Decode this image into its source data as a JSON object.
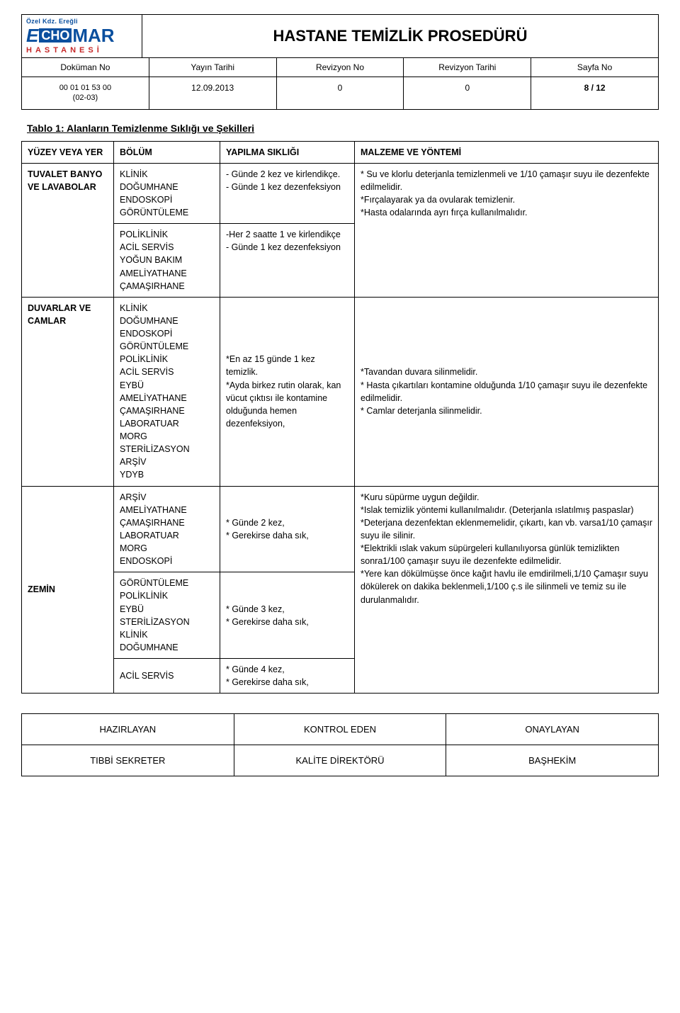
{
  "logo": {
    "top": "Özel Kdz. Ereğli",
    "e": "E",
    "cho": "CHO",
    "mar": "MAR",
    "sub": "HASTANESİ"
  },
  "title": "HASTANE TEMİZLİK PROSEDÜRÜ",
  "meta": {
    "headers": [
      "Doküman No",
      "Yayın Tarihi",
      "Revizyon No",
      "Revizyon Tarihi",
      "Sayfa No"
    ],
    "values": [
      "00 01 01 53 00\n(02-03)",
      "12.09.2013",
      "0",
      "0",
      "8 / 12"
    ]
  },
  "section_title": "Tablo 1: Alanların Temizlenme Sıklığı ve Şekilleri",
  "table": {
    "headers": {
      "yer": "YÜZEY VEYA YER",
      "bolum": "BÖLÜM",
      "siklik": "YAPILMA SIKLIĞI",
      "yontem": "MALZEME VE YÖNTEMİ"
    },
    "rows": [
      {
        "yer": "TUVALET BANYO VE LAVABOLAR",
        "yer_rowspan": 2,
        "bolum": "KLİNİK\nDOĞUMHANE\nENDOSKOPİ\nGÖRÜNTÜLEME",
        "siklik": "- Günde 2 kez ve kirlendikçe.\n- Günde 1 kez dezenfeksiyon",
        "yontem": "* Su ve klorlu deterjanla temizlenmeli ve 1/10 çamaşır suyu ile dezenfekte edilmelidir.\n*Fırçalayarak ya da ovularak temizlenir.\n*Hasta odalarında ayrı fırça kullanılmalıdır.",
        "yontem_rowspan": 2
      },
      {
        "bolum": "POLİKLİNİK\nACİL SERVİS\nYOĞUN BAKIM\nAMELİYATHANE\nÇAMAŞIRHANE",
        "siklik": "-Her 2 saatte 1 ve kirlendikçe\n- Günde 1 kez dezenfeksiyon"
      },
      {
        "yer": "DUVARLAR VE CAMLAR",
        "bolum": "KLİNİK\nDOĞUMHANE\nENDOSKOPİ\nGÖRÜNTÜLEME\nPOLİKLİNİK\nACİL SERVİS\nEYBÜ\nAMELİYATHANE\nÇAMAŞIRHANE\nLABORATUAR\nMORG\nSTERİLİZASYON\nARŞİV\nYDYB",
        "siklik": "*En az 15 günde 1 kez temizlik.\n*Ayda birkez rutin olarak, kan vücut çıktısı ile kontamine olduğunda hemen dezenfeksiyon,",
        "yontem": "*Tavandan duvara silinmelidir.\n* Hasta çıkartıları kontamine olduğunda 1/10 çamaşır suyu ile dezenfekte edilmelidir.\n* Camlar deterjanla silinmelidir."
      },
      {
        "yer": "ZEMİN",
        "yer_rowspan": 3,
        "bolum": "ARŞİV\nAMELİYATHANE\nÇAMAŞIRHANE\nLABORATUAR\nMORG\nENDOSKOPİ",
        "siklik": "* Günde 2 kez,\n* Gerekirse daha sık,",
        "yontem": "*Kuru süpürme uygun değildir.\n*Islak temizlik yöntemi kullanılmalıdır. (Deterjanla ıslatılmış paspaslar)\n*Deterjana dezenfektan eklenmemelidir, çıkartı, kan vb. varsa1/10 çamaşır suyu ile silinir.\n*Elektrikli ıslak vakum süpürgeleri kullanılıyorsa günlük temizlikten sonra1/100 çamaşır suyu ile dezenfekte edilmelidir.\n*Yere kan dökülmüşse önce kağıt havlu ile emdirilmeli,1/10 Çamaşır suyu dökülerek on dakika beklenmeli,1/100 ç.s ile silinmeli ve temiz su ile durulanmalıdır.",
        "yontem_rowspan": 3
      },
      {
        "bolum": "GÖRÜNTÜLEME\nPOLİKLİNİK\nEYBÜ\nSTERİLİZASYON\nKLİNİK\nDOĞUMHANE",
        "siklik": "* Günde 3 kez,\n* Gerekirse daha sık,"
      },
      {
        "bolum": "ACİL SERVİS",
        "siklik": "* Günde 4 kez,\n* Gerekirse daha sık,"
      }
    ]
  },
  "footer": {
    "row1": [
      "HAZIRLAYAN",
      "KONTROL EDEN",
      "ONAYLAYAN"
    ],
    "row2": [
      "TIBBİ SEKRETER",
      "KALİTE DİREKTÖRÜ",
      "BAŞHEKİM"
    ]
  }
}
